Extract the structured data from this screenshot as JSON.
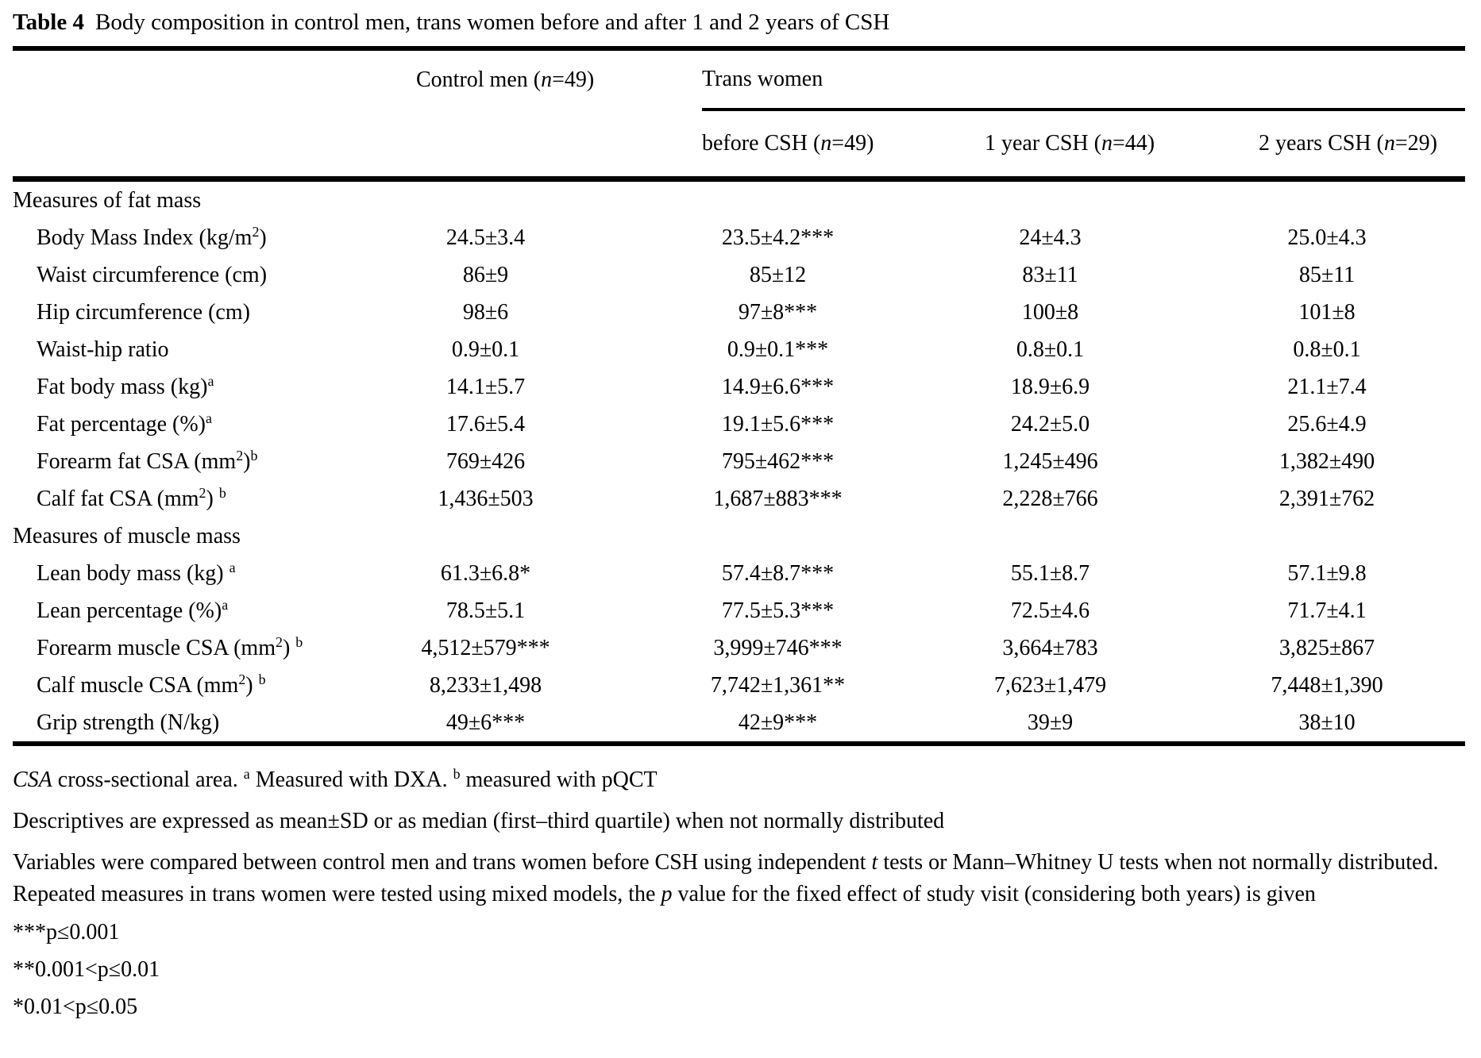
{
  "title": {
    "label": "Table 4",
    "text": "Body composition in control men, trans women before and after 1 and 2 years of CSH"
  },
  "table": {
    "headers": {
      "control": {
        "pre": "Control men (",
        "it": "n",
        "post": "=49)"
      },
      "group": "Trans women",
      "subheaders": [
        {
          "pre": "before CSH (",
          "it": "n",
          "post": "=49)"
        },
        {
          "pre": "1 year CSH (",
          "it": "n",
          "post": "=44)"
        },
        {
          "pre": "2 years CSH (",
          "it": "n",
          "post": "=29)"
        }
      ]
    },
    "sections": [
      {
        "section": "Measures of fat mass",
        "rows": [
          {
            "label": [
              [
                "t",
                "Body Mass Index (kg/m"
              ],
              [
                "s",
                "2"
              ],
              [
                "t",
                ")"
              ]
            ],
            "values": [
              "24.5±3.4",
              "23.5±4.2***",
              "24±4.3",
              "25.0±4.3"
            ]
          },
          {
            "label": [
              [
                "t",
                "Waist circumference (cm)"
              ]
            ],
            "values": [
              "86±9",
              "85±12",
              "83±11",
              "85±11"
            ]
          },
          {
            "label": [
              [
                "t",
                "Hip circumference (cm)"
              ]
            ],
            "values": [
              "98±6",
              "97±8***",
              "100±8",
              "101±8"
            ]
          },
          {
            "label": [
              [
                "t",
                "Waist-hip ratio"
              ]
            ],
            "values": [
              "0.9±0.1",
              "0.9±0.1***",
              "0.8±0.1",
              "0.8±0.1"
            ]
          },
          {
            "label": [
              [
                "t",
                "Fat body mass (kg)"
              ],
              [
                "s",
                "a"
              ]
            ],
            "values": [
              "14.1±5.7",
              "14.9±6.6***",
              "18.9±6.9",
              "21.1±7.4"
            ]
          },
          {
            "label": [
              [
                "t",
                "Fat percentage (%)"
              ],
              [
                "s",
                "a"
              ]
            ],
            "values": [
              "17.6±5.4",
              "19.1±5.6***",
              "24.2±5.0",
              "25.6±4.9"
            ]
          },
          {
            "label": [
              [
                "t",
                "Forearm fat CSA (mm"
              ],
              [
                "s",
                "2"
              ],
              [
                "t",
                ")"
              ],
              [
                "s",
                "b"
              ]
            ],
            "values": [
              "769±426",
              "795±462***",
              "1,245±496",
              "1,382±490"
            ]
          },
          {
            "label": [
              [
                "t",
                "Calf fat CSA (mm"
              ],
              [
                "s",
                "2"
              ],
              [
                "t",
                ") "
              ],
              [
                "s",
                "b"
              ]
            ],
            "values": [
              "1,436±503",
              "1,687±883***",
              "2,228±766",
              "2,391±762"
            ]
          }
        ]
      },
      {
        "section": "Measures of muscle mass",
        "rows": [
          {
            "label": [
              [
                "t",
                "Lean body mass (kg) "
              ],
              [
                "s",
                "a"
              ]
            ],
            "values": [
              "61.3±6.8*",
              "57.4±8.7***",
              "55.1±8.7",
              "57.1±9.8"
            ]
          },
          {
            "label": [
              [
                "t",
                "Lean percentage (%)"
              ],
              [
                "s",
                "a"
              ]
            ],
            "values": [
              "78.5±5.1",
              "77.5±5.3***",
              "72.5±4.6",
              "71.7±4.1"
            ]
          },
          {
            "label": [
              [
                "t",
                "Forearm muscle CSA (mm"
              ],
              [
                "s",
                "2"
              ],
              [
                "t",
                ") "
              ],
              [
                "s",
                "b"
              ]
            ],
            "values": [
              "4,512±579***",
              "3,999±746***",
              "3,664±783",
              "3,825±867"
            ]
          },
          {
            "label": [
              [
                "t",
                "Calf muscle CSA (mm"
              ],
              [
                "s",
                "2"
              ],
              [
                "t",
                ") "
              ],
              [
                "s",
                "b"
              ]
            ],
            "values": [
              "8,233±1,498",
              "7,742±1,361**",
              "7,623±1,479",
              "7,448±1,390"
            ]
          },
          {
            "label": [
              [
                "t",
                "Grip strength (N/kg)"
              ]
            ],
            "values": [
              "49±6***",
              "42±9***",
              "39±9",
              "38±10"
            ]
          }
        ]
      }
    ]
  },
  "footnotes": [
    {
      "cls": "fn",
      "segs": [
        [
          "i",
          "CSA"
        ],
        [
          "t",
          " cross-sectional area. "
        ],
        [
          "s",
          "a"
        ],
        [
          "t",
          " Measured with DXA. "
        ],
        [
          "s",
          "b"
        ],
        [
          "t",
          " measured with pQCT"
        ]
      ]
    },
    {
      "cls": "fn",
      "segs": [
        [
          "t",
          "Descriptives are expressed as mean±SD or as median (first–third quartile) when not normally distributed"
        ]
      ]
    },
    {
      "cls": "fn",
      "segs": [
        [
          "t",
          "Variables were compared between control men and trans women before CSH using independent "
        ],
        [
          "i",
          "t"
        ],
        [
          "t",
          " tests or Mann–Whitney U tests when not normally distributed. Repeated measures in trans women were tested using mixed models, the "
        ],
        [
          "i",
          "p"
        ],
        [
          "t",
          " value for the fixed effect of study visit (considering both years) is given"
        ]
      ]
    },
    {
      "cls": "sig",
      "segs": [
        [
          "t",
          "***p≤0.001"
        ]
      ]
    },
    {
      "cls": "sig",
      "segs": [
        [
          "t",
          "**0.001<p≤0.01"
        ]
      ]
    },
    {
      "cls": "sig",
      "segs": [
        [
          "t",
          "*0.01<p≤0.05"
        ]
      ]
    }
  ]
}
